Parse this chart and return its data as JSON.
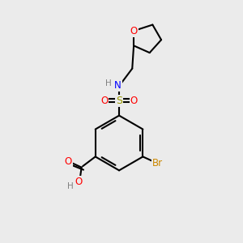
{
  "bg_color": "#ebebeb",
  "bond_color": "#000000",
  "line_width": 1.5,
  "atom_colors": {
    "O": "#ff0000",
    "N": "#0000ff",
    "S": "#999900",
    "Br": "#cc8800",
    "H": "#808080",
    "C": "#000000"
  },
  "figsize": [
    3.0,
    3.0
  ],
  "dpi": 100
}
